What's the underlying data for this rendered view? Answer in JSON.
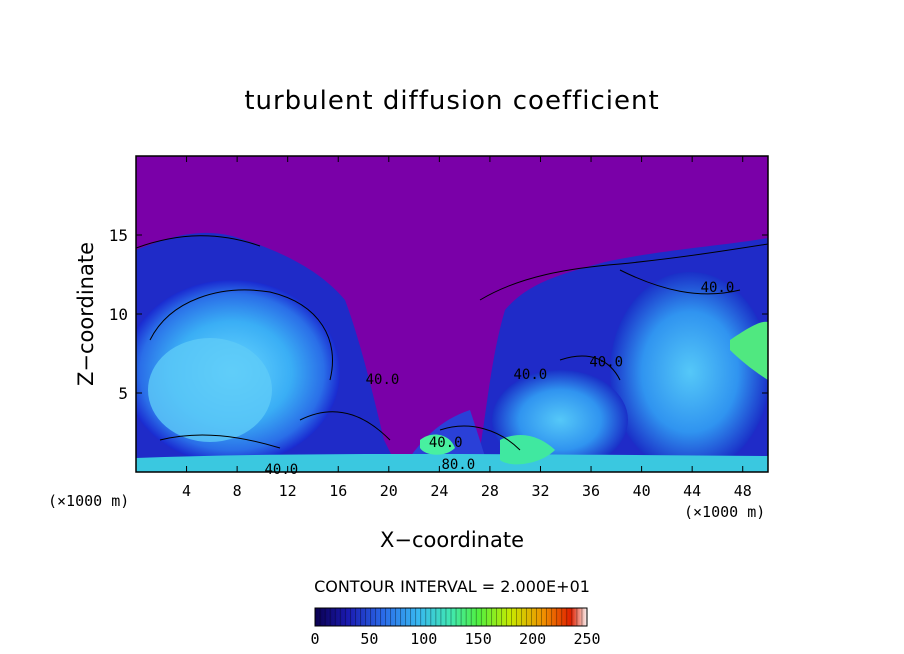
{
  "chart_data": {
    "type": "heatmap",
    "title": "turbulent diffusion coefficient",
    "xlabel": "X−coordinate",
    "ylabel": "Z−coordinate",
    "x_unit": "(×1000 m)",
    "y_unit": "(×1000 m)",
    "xlim": [
      0,
      50
    ],
    "ylim": [
      0,
      20
    ],
    "x_ticks": [
      4,
      8,
      12,
      16,
      20,
      24,
      28,
      32,
      36,
      40,
      44,
      48
    ],
    "y_ticks": [
      5,
      10,
      15
    ],
    "contour_interval_label": "CONTOUR INTERVAL = 2.000E+01",
    "contour_interval": 20,
    "contour_labels": [
      {
        "text": "40.0",
        "x": 46,
        "z": 11.7
      },
      {
        "text": "40.0",
        "x": 37.2,
        "z": 7.0
      },
      {
        "text": "40.0",
        "x": 31.2,
        "z": 6.2
      },
      {
        "text": "40.0",
        "x": 19.5,
        "z": 5.9
      },
      {
        "text": "40.0",
        "x": 24.5,
        "z": 1.9
      },
      {
        "text": "40.0",
        "x": 11.5,
        "z": 0.2
      },
      {
        "text": "80.0",
        "x": 25.5,
        "z": 0.5
      }
    ],
    "colorbar": {
      "min": 0,
      "max": 250,
      "ticks": [
        0,
        50,
        100,
        150,
        200,
        250
      ],
      "colors": [
        "#0a0060",
        "#1a1aa0",
        "#2e5ee0",
        "#3aa8f0",
        "#40e0b0",
        "#40f040",
        "#c0f000",
        "#f0a000",
        "#e03000",
        "#ffffff"
      ]
    },
    "background_value_color": "#7a00a8",
    "grid": false,
    "legend": "colorbar-bottom"
  }
}
